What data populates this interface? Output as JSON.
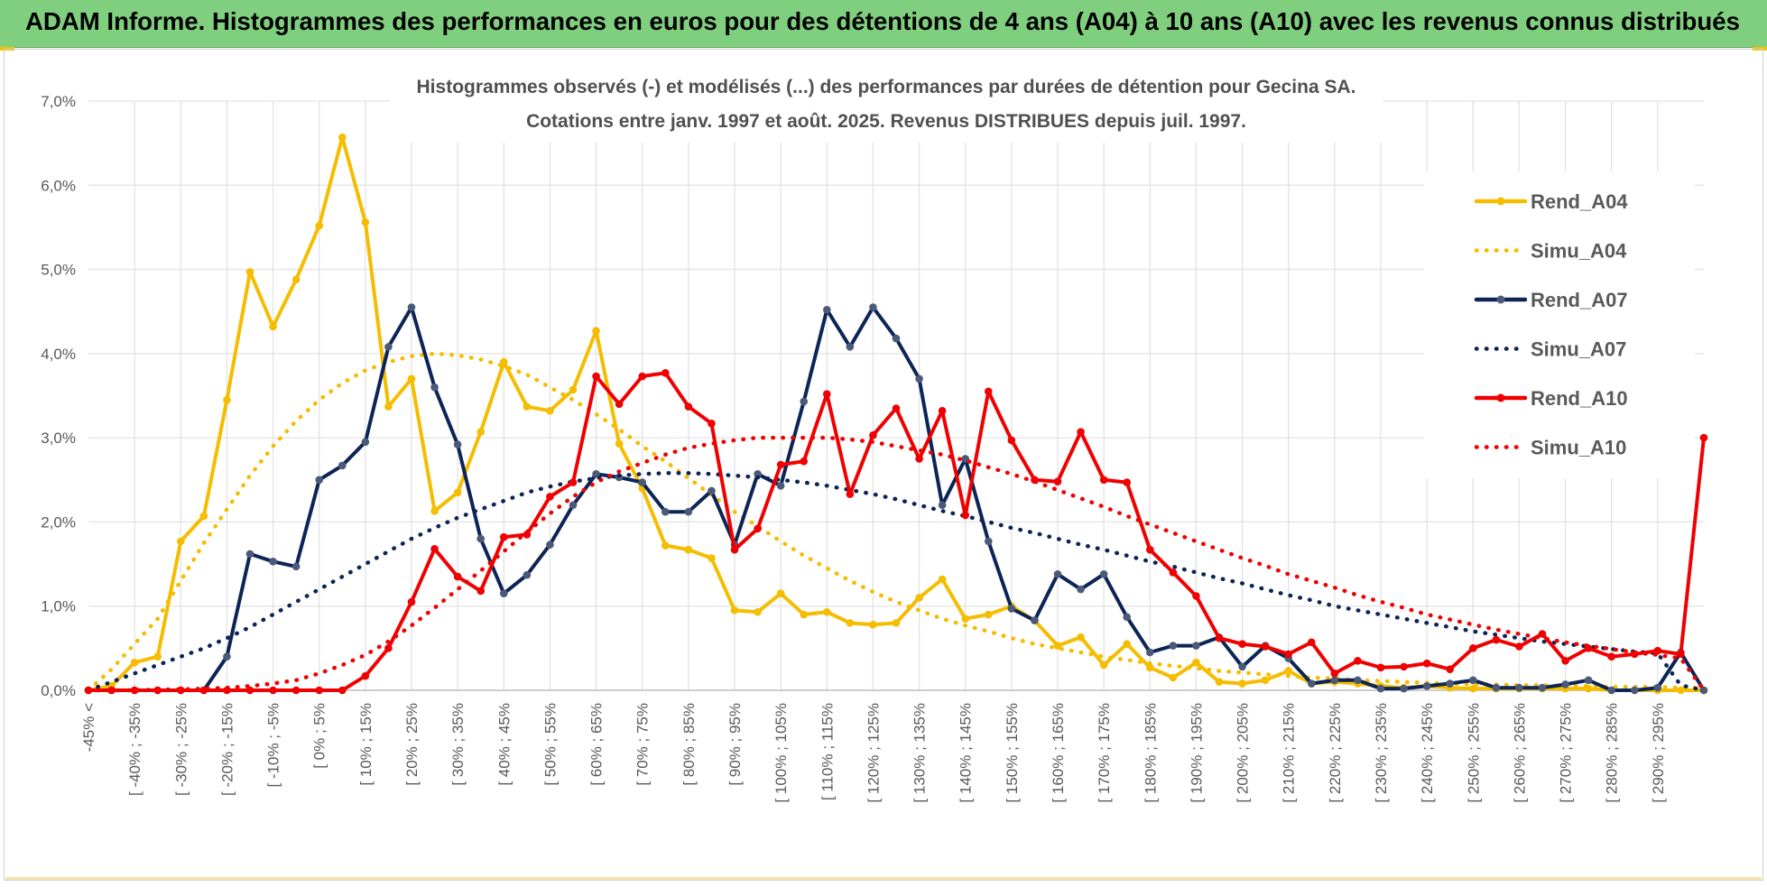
{
  "banner": {
    "title": "ADAM Informe. Histogrammes des performances en euros pour des détentions de 4 ans (A04) à 10 ans (A10) avec les revenus connus distribués"
  },
  "colors": {
    "banner": "#7fcf7f",
    "Rend_A04": "#f5bd00",
    "Rend_A07": "#0c2556",
    "Rend_A10": "#f00000",
    "marker_A07": "#4a5a78"
  },
  "chart_data": {
    "type": "line",
    "title": "Histogrammes observés (-) et modélisés (...) des performances par durées de détention pour Gecina SA.",
    "subtitle": "Cotations entre janv. 1997 et août. 2025. Revenus DISTRIBUES depuis juil. 1997.",
    "xlabel": "",
    "ylabel": "",
    "ylim": [
      0,
      7
    ],
    "y_ticks": [
      "0,0%",
      "1,0%",
      "2,0%",
      "3,0%",
      "4,0%",
      "5,0%",
      "6,0%",
      "7,0%"
    ],
    "grid": true,
    "legend_position": "right",
    "categories": [
      "-45% <",
      "[ -45% ; -40%",
      "[ -40% ; -35%",
      "[ -35% ; -30%",
      "[ -30% ; -25%",
      "[ -25% ; -20%",
      "[ -20% ; -15%",
      "[ -15% ; -10%",
      "[ -10% ; -5%",
      "[ -5% ; 0%",
      "[ 0% ; 5%",
      "[ 5% ; 10%",
      "[ 10% ; 15%",
      "[ 15% ; 20%",
      "[ 20% ; 25%",
      "[ 25% ; 30%",
      "[ 30% ; 35%",
      "[ 35% ; 40%",
      "[ 40% ; 45%",
      "[ 45% ; 50%",
      "[ 50% ; 55%",
      "[ 55% ; 60%",
      "[ 60% ; 65%",
      "[ 65% ; 70%",
      "[ 70% ; 75%",
      "[ 75% ; 80%",
      "[ 80% ; 85%",
      "[ 85% ; 90%",
      "[ 90% ; 95%",
      "[ 95% ; 100%",
      "[ 100% ; 105%",
      "[ 105% ; 110%",
      "[ 110% ; 115%",
      "[ 115% ; 120%",
      "[ 120% ; 125%",
      "[ 125% ; 130%",
      "[ 130% ; 135%",
      "[ 135% ; 140%",
      "[ 140% ; 145%",
      "[ 145% ; 150%",
      "[ 150% ; 155%",
      "[ 155% ; 160%",
      "[ 160% ; 165%",
      "[ 165% ; 170%",
      "[ 170% ; 175%",
      "[ 175% ; 180%",
      "[ 180% ; 185%",
      "[ 185% ; 190%",
      "[ 190% ; 195%",
      "[ 195% ; 200%",
      "[ 200% ; 205%",
      "[ 205% ; 210%",
      "[ 210% ; 215%",
      "[ 215% ; 220%",
      "[ 220% ; 225%",
      "[ 225% ; 230%",
      "[ 230% ; 235%",
      "[ 235% ; 240%",
      "[ 240% ; 245%",
      "[ 245% ; 250%",
      "[ 250% ; 255%",
      "[ 255% ; 260%",
      "[ 260% ; 265%",
      "[ 265% ; 270%",
      "[ 270% ; 275%",
      "[ 275% ; 280%",
      "[ 280% ; 285%",
      "[ 285% ; 290%",
      "[ 290% ; 295%",
      "[ 295% ; 300%",
      "300% >"
    ],
    "visible_tick_labels": [
      "-45% <",
      "[ -40% ; -35%",
      "[ -30% ; -25%",
      "[ -20% ; -15%",
      "[ -10% ; -5%",
      "[ 0% ; 5%",
      "[ 10% ; 15%",
      "[ 20% ; 25%",
      "[ 30% ; 35%",
      "[ 40% ; 45%",
      "[ 50% ; 55%",
      "[ 60% ; 65%",
      "[ 70% ; 75%",
      "[ 80% ; 85%",
      "[ 90% ; 95%",
      "[ 100% ; 105%",
      "[ 110% ; 115%",
      "[ 120% ; 125%",
      "[ 130% ; 135%",
      "[ 140% ; 145%",
      "[ 150% ; 155%",
      "[ 160% ; 165%",
      "[ 170% ; 175%",
      "[ 180% ; 185%",
      "[ 190% ; 195%",
      "[ 200% ; 205%",
      "[ 210% ; 215%",
      "[ 220% ; 225%",
      "[ 230% ; 235%",
      "[ 240% ; 245%",
      "[ 250% ; 255%",
      "[ 260% ; 265%",
      "[ 270% ; 275%",
      "[ 280% ; 285%",
      "[ 290% ; 295%"
    ],
    "series": [
      {
        "name": "Rend_A04",
        "style": "solid",
        "color": "#f5bd00",
        "values": [
          0.0,
          0.05,
          0.33,
          0.4,
          1.77,
          2.07,
          3.45,
          4.97,
          4.32,
          4.88,
          5.52,
          6.57,
          5.56,
          3.37,
          3.7,
          2.13,
          2.35,
          3.07,
          3.9,
          3.37,
          3.32,
          3.57,
          4.27,
          2.93,
          2.4,
          1.72,
          1.67,
          1.57,
          0.95,
          0.93,
          1.15,
          0.9,
          0.93,
          0.8,
          0.78,
          0.8,
          1.1,
          1.32,
          0.85,
          0.9,
          1.0,
          0.83,
          0.53,
          0.63,
          0.3,
          0.55,
          0.27,
          0.15,
          0.33,
          0.1,
          0.08,
          0.12,
          0.23,
          0.08,
          0.1,
          0.08,
          0.05,
          0.03,
          0.05,
          0.03,
          0.02,
          0.02,
          0.02,
          0.02,
          0.02,
          0.02,
          0.0,
          0.0,
          0.0,
          0.0,
          0.0
        ]
      },
      {
        "name": "Simu_A04",
        "style": "dotted",
        "color": "#f5bd00",
        "values": [
          0.0,
          0.25,
          0.55,
          0.85,
          1.3,
          1.75,
          2.15,
          2.55,
          2.9,
          3.2,
          3.45,
          3.65,
          3.8,
          3.9,
          3.97,
          4.0,
          3.98,
          3.93,
          3.85,
          3.75,
          3.6,
          3.45,
          3.28,
          3.1,
          2.9,
          2.72,
          2.52,
          2.32,
          2.12,
          1.95,
          1.77,
          1.6,
          1.45,
          1.3,
          1.17,
          1.05,
          0.95,
          0.85,
          0.77,
          0.7,
          0.62,
          0.55,
          0.5,
          0.45,
          0.4,
          0.36,
          0.32,
          0.29,
          0.26,
          0.23,
          0.21,
          0.19,
          0.17,
          0.15,
          0.14,
          0.12,
          0.11,
          0.1,
          0.09,
          0.08,
          0.07,
          0.07,
          0.06,
          0.06,
          0.05,
          0.05,
          0.04,
          0.04,
          0.04,
          0.03,
          0.03
        ]
      },
      {
        "name": "Rend_A07",
        "style": "solid",
        "color": "#0c2556",
        "values": [
          0.0,
          0.0,
          0.0,
          0.0,
          0.0,
          0.0,
          0.4,
          1.62,
          1.53,
          1.47,
          2.5,
          2.67,
          2.95,
          4.08,
          4.55,
          3.6,
          2.92,
          1.8,
          1.15,
          1.37,
          1.73,
          2.2,
          2.57,
          2.53,
          2.47,
          2.12,
          2.12,
          2.37,
          1.73,
          2.57,
          2.43,
          3.43,
          4.52,
          4.08,
          4.55,
          4.18,
          3.7,
          2.2,
          2.75,
          1.77,
          0.97,
          0.83,
          1.38,
          1.2,
          1.38,
          0.87,
          0.45,
          0.53,
          0.53,
          0.63,
          0.28,
          0.53,
          0.38,
          0.08,
          0.12,
          0.12,
          0.02,
          0.02,
          0.05,
          0.08,
          0.12,
          0.03,
          0.03,
          0.03,
          0.07,
          0.12,
          0.0,
          0.0,
          0.03,
          0.45,
          0.0
        ]
      },
      {
        "name": "Simu_A07",
        "style": "dotted",
        "color": "#0c2556",
        "values": [
          0.0,
          0.1,
          0.2,
          0.3,
          0.4,
          0.5,
          0.62,
          0.75,
          0.9,
          1.05,
          1.2,
          1.35,
          1.5,
          1.65,
          1.8,
          1.93,
          2.05,
          2.15,
          2.25,
          2.35,
          2.42,
          2.48,
          2.52,
          2.55,
          2.57,
          2.58,
          2.58,
          2.57,
          2.55,
          2.53,
          2.5,
          2.47,
          2.43,
          2.38,
          2.33,
          2.27,
          2.2,
          2.13,
          2.07,
          2.0,
          1.93,
          1.87,
          1.8,
          1.73,
          1.67,
          1.6,
          1.53,
          1.47,
          1.4,
          1.33,
          1.27,
          1.2,
          1.13,
          1.07,
          1.0,
          0.95,
          0.9,
          0.85,
          0.8,
          0.75,
          0.7,
          0.66,
          0.62,
          0.58,
          0.55,
          0.52,
          0.49,
          0.46,
          0.44,
          0.06,
          0.0
        ]
      },
      {
        "name": "Rend_A10",
        "style": "solid",
        "color": "#f00000",
        "values": [
          0.0,
          0.0,
          0.0,
          0.0,
          0.0,
          0.0,
          0.0,
          0.0,
          0.0,
          0.0,
          0.0,
          0.0,
          0.17,
          0.5,
          1.05,
          1.68,
          1.35,
          1.18,
          1.82,
          1.85,
          2.3,
          2.47,
          3.73,
          3.4,
          3.73,
          3.77,
          3.37,
          3.17,
          1.67,
          1.92,
          2.68,
          2.72,
          3.52,
          2.33,
          3.03,
          3.35,
          2.75,
          3.32,
          2.08,
          3.55,
          2.97,
          2.5,
          2.48,
          3.07,
          2.5,
          2.47,
          1.67,
          1.4,
          1.12,
          0.62,
          0.55,
          0.52,
          0.43,
          0.57,
          0.2,
          0.35,
          0.27,
          0.28,
          0.32,
          0.25,
          0.5,
          0.6,
          0.52,
          0.67,
          0.35,
          0.5,
          0.4,
          0.43,
          0.47,
          0.43,
          3.0
        ]
      },
      {
        "name": "Simu_A10",
        "style": "dotted",
        "color": "#f00000",
        "values": [
          0.0,
          0.0,
          0.0,
          0.01,
          0.01,
          0.02,
          0.03,
          0.05,
          0.08,
          0.12,
          0.2,
          0.3,
          0.42,
          0.58,
          0.77,
          0.98,
          1.2,
          1.42,
          1.65,
          1.88,
          2.1,
          2.3,
          2.47,
          2.6,
          2.7,
          2.8,
          2.88,
          2.93,
          2.97,
          3.0,
          3.0,
          3.0,
          3.0,
          2.98,
          2.95,
          2.9,
          2.85,
          2.8,
          2.73,
          2.65,
          2.57,
          2.48,
          2.38,
          2.28,
          2.18,
          2.07,
          1.97,
          1.87,
          1.77,
          1.67,
          1.57,
          1.48,
          1.38,
          1.3,
          1.22,
          1.13,
          1.05,
          0.98,
          0.9,
          0.84,
          0.78,
          0.72,
          0.67,
          0.62,
          0.57,
          0.53,
          0.49,
          0.45,
          0.42,
          0.38,
          0.0
        ]
      }
    ]
  }
}
